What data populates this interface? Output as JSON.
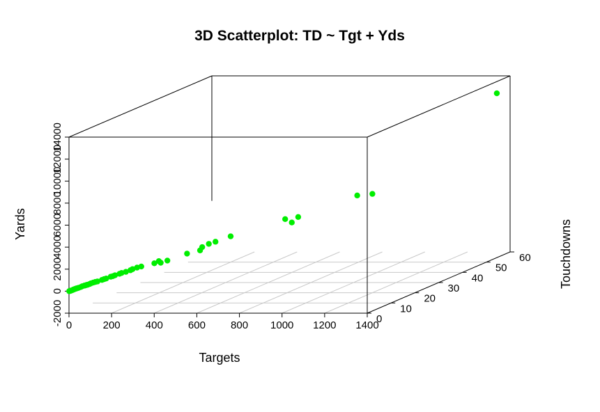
{
  "chart_data": {
    "type": "scatter",
    "title": "3D Scatterplot: TD ~ Tgt + Yds",
    "xlabel": "Targets",
    "ylabel": "Yards",
    "zlabel": "Touchdowns",
    "x_ticks": [
      "0",
      "200",
      "400",
      "600",
      "800",
      "1000",
      "1200",
      "1400"
    ],
    "y_ticks": [
      "-2000",
      "0",
      "2000",
      "4000",
      "6000",
      "8000",
      "10000",
      "12000",
      "14000"
    ],
    "z_ticks": [
      "0",
      "10",
      "20",
      "30",
      "40",
      "50",
      "60"
    ],
    "xlim": [
      0,
      1400
    ],
    "ylim": [
      -2000,
      14000
    ],
    "zlim": [
      0,
      60
    ],
    "grid": "floor",
    "point_color": "#00ee00",
    "points": [
      {
        "x": 1,
        "y": 0,
        "z": 0
      },
      {
        "x": 3,
        "y": 10,
        "z": 0
      },
      {
        "x": 5,
        "y": 25,
        "z": 0
      },
      {
        "x": 8,
        "y": 40,
        "z": 0
      },
      {
        "x": 10,
        "y": 60,
        "z": 1
      },
      {
        "x": 12,
        "y": 70,
        "z": 0
      },
      {
        "x": 15,
        "y": 90,
        "z": 1
      },
      {
        "x": 18,
        "y": 110,
        "z": 0
      },
      {
        "x": 20,
        "y": 130,
        "z": 1
      },
      {
        "x": 25,
        "y": 160,
        "z": 1
      },
      {
        "x": 30,
        "y": 190,
        "z": 1
      },
      {
        "x": 35,
        "y": 220,
        "z": 1
      },
      {
        "x": 40,
        "y": 260,
        "z": 2
      },
      {
        "x": 45,
        "y": 290,
        "z": 1
      },
      {
        "x": 50,
        "y": 320,
        "z": 2
      },
      {
        "x": 55,
        "y": 340,
        "z": 2
      },
      {
        "x": 60,
        "y": 380,
        "z": 2
      },
      {
        "x": 65,
        "y": 400,
        "z": 2
      },
      {
        "x": 70,
        "y": 440,
        "z": 3
      },
      {
        "x": 75,
        "y": 470,
        "z": 2
      },
      {
        "x": 80,
        "y": 500,
        "z": 3
      },
      {
        "x": 90,
        "y": 560,
        "z": 3
      },
      {
        "x": 100,
        "y": 600,
        "z": 3
      },
      {
        "x": 110,
        "y": 650,
        "z": 4
      },
      {
        "x": 120,
        "y": 720,
        "z": 4
      },
      {
        "x": 130,
        "y": 780,
        "z": 4
      },
      {
        "x": 140,
        "y": 850,
        "z": 5
      },
      {
        "x": 150,
        "y": 900,
        "z": 5
      },
      {
        "x": 160,
        "y": 980,
        "z": 5
      },
      {
        "x": 170,
        "y": 1020,
        "z": 6
      },
      {
        "x": 180,
        "y": 1100,
        "z": 6
      },
      {
        "x": 200,
        "y": 1200,
        "z": 6
      },
      {
        "x": 210,
        "y": 1250,
        "z": 7
      },
      {
        "x": 220,
        "y": 1350,
        "z": 7
      },
      {
        "x": 230,
        "y": 1400,
        "z": 8
      },
      {
        "x": 250,
        "y": 1500,
        "z": 8
      },
      {
        "x": 300,
        "y": 1700,
        "z": 9
      },
      {
        "x": 310,
        "y": 1800,
        "z": 10
      },
      {
        "x": 330,
        "y": 1750,
        "z": 9
      },
      {
        "x": 350,
        "y": 1850,
        "z": 10
      },
      {
        "x": 420,
        "y": 2300,
        "z": 12
      },
      {
        "x": 470,
        "y": 2500,
        "z": 13
      },
      {
        "x": 480,
        "y": 2800,
        "z": 13
      },
      {
        "x": 500,
        "y": 3000,
        "z": 14
      },
      {
        "x": 520,
        "y": 3100,
        "z": 15
      },
      {
        "x": 580,
        "y": 3500,
        "z": 16
      },
      {
        "x": 780,
        "y": 4600,
        "z": 21
      },
      {
        "x": 800,
        "y": 4200,
        "z": 22
      },
      {
        "x": 830,
        "y": 4700,
        "z": 22
      },
      {
        "x": 1040,
        "y": 6100,
        "z": 28
      },
      {
        "x": 1100,
        "y": 6150,
        "z": 29
      },
      {
        "x": 1360,
        "y": 12600,
        "z": 58
      }
    ]
  }
}
